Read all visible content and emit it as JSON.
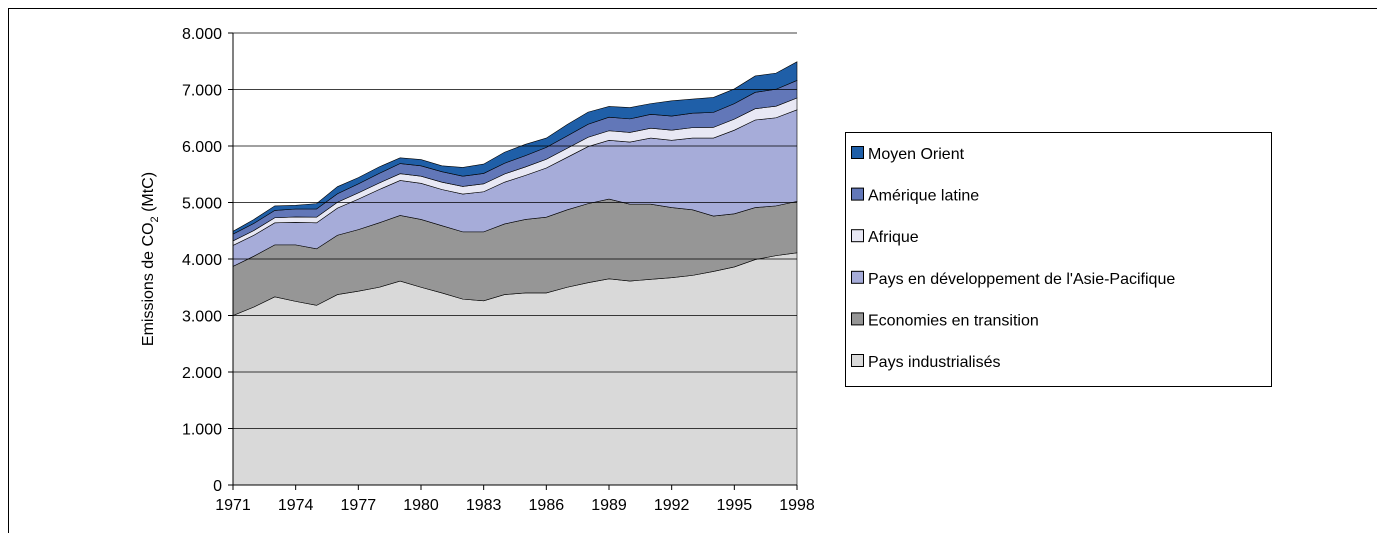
{
  "chart_data": {
    "type": "stacked_area",
    "y_label": [
      "Emissions  de CO",
      "2",
      "  (MtC)"
    ],
    "x": [
      1971,
      1972,
      1973,
      1974,
      1975,
      1976,
      1977,
      1978,
      1979,
      1980,
      1981,
      1982,
      1983,
      1984,
      1985,
      1986,
      1987,
      1988,
      1989,
      1990,
      1991,
      1992,
      1993,
      1994,
      1995,
      1996,
      1997,
      1998
    ],
    "xlim": [
      1971,
      1998
    ],
    "xticks": [
      1971,
      1974,
      1977,
      1980,
      1983,
      1986,
      1989,
      1992,
      1995,
      1998
    ],
    "ylim": [
      0,
      8000
    ],
    "yticks": [
      0,
      {
        "value": 1000,
        "label": "1.000"
      },
      {
        "value": 2000,
        "label": "2.000"
      },
      {
        "value": 3000,
        "label": "3.000"
      },
      {
        "value": 4000,
        "label": "4.000"
      },
      {
        "value": 5000,
        "label": "5.000"
      },
      {
        "value": 6000,
        "label": "6.000"
      },
      {
        "value": 7000,
        "label": "7.000"
      },
      {
        "value": 8000,
        "label": "8.000"
      }
    ],
    "grid": true,
    "legend": "right",
    "series": [
      {
        "name": "Pays industrialisés",
        "color": "#d9d9d9",
        "values": [
          3000,
          3150,
          3330,
          3250,
          3180,
          3370,
          3430,
          3500,
          3610,
          3500,
          3400,
          3290,
          3260,
          3370,
          3400,
          3400,
          3500,
          3580,
          3650,
          3610,
          3640,
          3670,
          3710,
          3780,
          3860,
          3990,
          4060,
          4110
        ]
      },
      {
        "name": "Economies en transition",
        "color": "#969696",
        "values": [
          870,
          900,
          920,
          1000,
          1000,
          1050,
          1090,
          1140,
          1160,
          1200,
          1190,
          1190,
          1220,
          1250,
          1300,
          1340,
          1370,
          1400,
          1410,
          1360,
          1330,
          1240,
          1160,
          980,
          940,
          920,
          880,
          910
        ]
      },
      {
        "name": "Pays en développement de l'Asie-Pacifique",
        "color": "#a6acd9",
        "values": [
          370,
          370,
          390,
          400,
          460,
          480,
          540,
          590,
          620,
          640,
          640,
          670,
          710,
          740,
          780,
          870,
          930,
          1010,
          1040,
          1100,
          1170,
          1190,
          1270,
          1380,
          1480,
          1550,
          1560,
          1620
        ]
      },
      {
        "name": "Afrique",
        "color": "#e8e8f4",
        "values": [
          80,
          85,
          90,
          95,
          100,
          105,
          110,
          115,
          120,
          125,
          130,
          135,
          140,
          145,
          150,
          155,
          160,
          165,
          170,
          170,
          175,
          180,
          185,
          190,
          195,
          200,
          205,
          210
        ]
      },
      {
        "name": "Amérique latine",
        "color": "#6277b8",
        "values": [
          120,
          125,
          130,
          140,
          145,
          150,
          160,
          170,
          180,
          185,
          185,
          180,
          185,
          190,
          200,
          210,
          220,
          230,
          240,
          240,
          245,
          250,
          255,
          265,
          275,
          290,
          300,
          310
        ]
      },
      {
        "name": "Moyen Orient",
        "color": "#1f5fa8",
        "values": [
          50,
          70,
          80,
          65,
          95,
          125,
          110,
          115,
          100,
          110,
          105,
          155,
          165,
          195,
          200,
          165,
          200,
          215,
          190,
          200,
          190,
          270,
          250,
          265,
          260,
          290,
          285,
          330
        ]
      }
    ]
  }
}
